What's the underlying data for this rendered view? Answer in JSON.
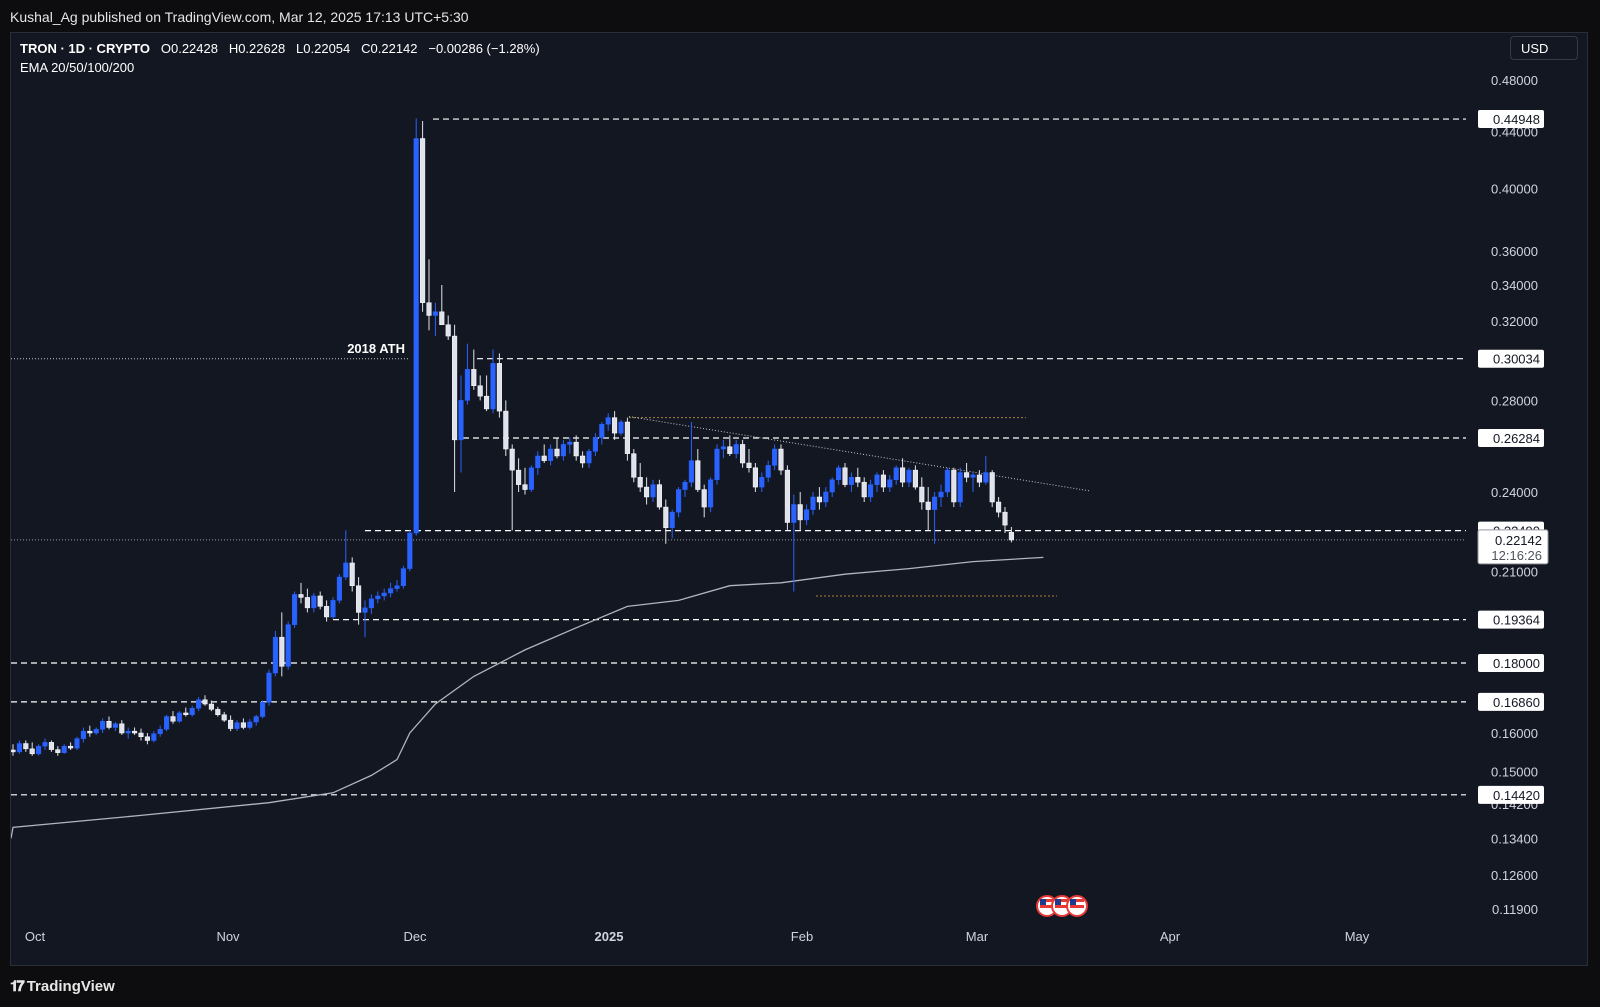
{
  "header": {
    "published_by": "Kushal_Ag published on TradingView.com, Mar 12, 2025 17:13 UTC+5:30"
  },
  "legend": {
    "symbol": "TRON · 1D · CRYPTO",
    "open": "O0.22428",
    "high": "H0.22628",
    "low": "L0.22054",
    "close": "C0.22142",
    "change": "−0.00286 (−1.28%)",
    "indicator": "EMA 20/50/100/200"
  },
  "currency_button": "USD",
  "brand": "TradingView",
  "colors": {
    "background": "#131722",
    "bull_candle": "#2962ff",
    "bear_candle": "#e0e3eb",
    "ema_line": "#b2b5be",
    "level_line": "#ffffff",
    "triangle_line": "#9598a1",
    "orange_line": "#a8823a",
    "label_bg": "#ffffff"
  },
  "chart_data": {
    "type": "candlestick",
    "symbol": "TRON",
    "interval": "1D",
    "y_scale": "log",
    "x_tick_labels": [
      "Oct",
      "Nov",
      "Dec",
      "2025",
      "Feb",
      "Mar",
      "Apr",
      "May"
    ],
    "y_tick_labels": [
      "0.48000",
      "0.44000",
      "0.40000",
      "0.36000",
      "0.34000",
      "0.32000",
      "0.28000",
      "0.24000",
      "0.21000",
      "0.16000",
      "0.15000",
      "0.14200",
      "0.13400",
      "0.12600",
      "0.11900"
    ],
    "horizontal_levels": [
      {
        "value": "0.44948",
        "style": "dashed"
      },
      {
        "value": "0.30034",
        "style": "dashed"
      },
      {
        "value": "0.26284",
        "style": "dashed"
      },
      {
        "value": "0.22490",
        "style": "dashed"
      },
      {
        "value": "0.19364",
        "style": "dashed"
      },
      {
        "value": "0.18000",
        "style": "dashed"
      },
      {
        "value": "0.16860",
        "style": "dashed"
      },
      {
        "value": "0.14420",
        "style": "dashed"
      }
    ],
    "annotations": [
      {
        "text": "2018 ATH",
        "value": 0.3003
      }
    ],
    "current_price": {
      "value": "0.22142",
      "countdown": "12:16:26"
    },
    "candles_ohlc_start_end": {
      "start_date": "Sep 27 2024",
      "end_date": "Mar 12 2025"
    },
    "candles": [
      [
        0.1555,
        0.157,
        0.154,
        0.155
      ],
      [
        0.155,
        0.158,
        0.1545,
        0.1572
      ],
      [
        0.1572,
        0.158,
        0.155,
        0.1558
      ],
      [
        0.1558,
        0.1575,
        0.154,
        0.1545
      ],
      [
        0.1545,
        0.157,
        0.154,
        0.1565
      ],
      [
        0.1565,
        0.1585,
        0.1555,
        0.1575
      ],
      [
        0.1575,
        0.158,
        0.155,
        0.1556
      ],
      [
        0.1556,
        0.1565,
        0.154,
        0.1548
      ],
      [
        0.1548,
        0.157,
        0.1545,
        0.1565
      ],
      [
        0.1565,
        0.1575,
        0.1555,
        0.156
      ],
      [
        0.156,
        0.159,
        0.1555,
        0.1585
      ],
      [
        0.1585,
        0.1615,
        0.1575,
        0.1605
      ],
      [
        0.1605,
        0.162,
        0.159,
        0.16
      ],
      [
        0.16,
        0.1615,
        0.1595,
        0.161
      ],
      [
        0.161,
        0.164,
        0.16,
        0.1632
      ],
      [
        0.1632,
        0.1645,
        0.161,
        0.1615
      ],
      [
        0.1615,
        0.163,
        0.1605,
        0.1625
      ],
      [
        0.1625,
        0.1635,
        0.1595,
        0.16
      ],
      [
        0.16,
        0.1615,
        0.1585,
        0.1605
      ],
      [
        0.1605,
        0.1615,
        0.1595,
        0.16
      ],
      [
        0.16,
        0.1612,
        0.158,
        0.159
      ],
      [
        0.159,
        0.16,
        0.157,
        0.158
      ],
      [
        0.158,
        0.1605,
        0.1575,
        0.1598
      ],
      [
        0.1598,
        0.162,
        0.159,
        0.161
      ],
      [
        0.161,
        0.165,
        0.1605,
        0.1645
      ],
      [
        0.1645,
        0.166,
        0.1625,
        0.1632
      ],
      [
        0.1632,
        0.166,
        0.1628,
        0.1655
      ],
      [
        0.1655,
        0.167,
        0.1645,
        0.165
      ],
      [
        0.165,
        0.1675,
        0.1645,
        0.1668
      ],
      [
        0.1668,
        0.17,
        0.166,
        0.1692
      ],
      [
        0.1692,
        0.1705,
        0.1675,
        0.168
      ],
      [
        0.168,
        0.169,
        0.166,
        0.1665
      ],
      [
        0.1665,
        0.1672,
        0.1645,
        0.165
      ],
      [
        0.165,
        0.1658,
        0.163,
        0.1635
      ],
      [
        0.1635,
        0.1648,
        0.1605,
        0.1612
      ],
      [
        0.1612,
        0.1635,
        0.1605,
        0.1628
      ],
      [
        0.1628,
        0.164,
        0.161,
        0.1615
      ],
      [
        0.1615,
        0.1638,
        0.161,
        0.163
      ],
      [
        0.163,
        0.165,
        0.162,
        0.1645
      ],
      [
        0.1645,
        0.169,
        0.164,
        0.1685
      ],
      [
        0.1685,
        0.178,
        0.1675,
        0.177
      ],
      [
        0.177,
        0.19,
        0.176,
        0.188
      ],
      [
        0.188,
        0.196,
        0.176,
        0.179
      ],
      [
        0.179,
        0.193,
        0.178,
        0.192
      ],
      [
        0.192,
        0.203,
        0.191,
        0.202
      ],
      [
        0.202,
        0.206,
        0.199,
        0.201
      ],
      [
        0.201,
        0.204,
        0.196,
        0.1975
      ],
      [
        0.1975,
        0.2025,
        0.196,
        0.2015
      ],
      [
        0.2015,
        0.203,
        0.197,
        0.198
      ],
      [
        0.198,
        0.2,
        0.193,
        0.1945
      ],
      [
        0.1945,
        0.201,
        0.194,
        0.2
      ],
      [
        0.2,
        0.209,
        0.199,
        0.208
      ],
      [
        0.208,
        0.225,
        0.207,
        0.213
      ],
      [
        0.213,
        0.215,
        0.203,
        0.205
      ],
      [
        0.205,
        0.208,
        0.192,
        0.196
      ],
      [
        0.196,
        0.2,
        0.188,
        0.1975
      ],
      [
        0.1975,
        0.202,
        0.1955,
        0.2005
      ],
      [
        0.2005,
        0.203,
        0.199,
        0.2015
      ],
      [
        0.2015,
        0.204,
        0.2,
        0.2025
      ],
      [
        0.2025,
        0.206,
        0.201,
        0.204
      ],
      [
        0.204,
        0.207,
        0.203,
        0.205
      ],
      [
        0.205,
        0.212,
        0.204,
        0.211
      ],
      [
        0.211,
        0.225,
        0.21,
        0.224
      ],
      [
        0.224,
        0.45,
        0.223,
        0.435
      ],
      [
        0.435,
        0.448,
        0.325,
        0.33
      ],
      [
        0.33,
        0.355,
        0.315,
        0.323
      ],
      [
        0.323,
        0.33,
        0.312,
        0.325
      ],
      [
        0.325,
        0.34,
        0.318,
        0.318
      ],
      [
        0.318,
        0.323,
        0.31,
        0.312
      ],
      [
        0.312,
        0.318,
        0.24,
        0.262
      ],
      [
        0.262,
        0.292,
        0.248,
        0.28
      ],
      [
        0.28,
        0.308,
        0.278,
        0.295
      ],
      [
        0.295,
        0.305,
        0.285,
        0.287
      ],
      [
        0.287,
        0.292,
        0.28,
        0.282
      ],
      [
        0.282,
        0.292,
        0.275,
        0.276
      ],
      [
        0.276,
        0.305,
        0.274,
        0.298
      ],
      [
        0.298,
        0.303,
        0.272,
        0.275
      ],
      [
        0.275,
        0.28,
        0.255,
        0.258
      ],
      [
        0.258,
        0.26,
        0.225,
        0.249
      ],
      [
        0.249,
        0.254,
        0.24,
        0.243
      ],
      [
        0.243,
        0.25,
        0.239,
        0.241
      ],
      [
        0.241,
        0.251,
        0.24,
        0.25
      ],
      [
        0.25,
        0.257,
        0.247,
        0.255
      ],
      [
        0.255,
        0.26,
        0.252,
        0.253
      ],
      [
        0.253,
        0.26,
        0.251,
        0.258
      ],
      [
        0.258,
        0.263,
        0.254,
        0.255
      ],
      [
        0.255,
        0.262,
        0.253,
        0.26
      ],
      [
        0.26,
        0.263,
        0.256,
        0.261
      ],
      [
        0.261,
        0.264,
        0.253,
        0.255
      ],
      [
        0.255,
        0.257,
        0.25,
        0.252
      ],
      [
        0.252,
        0.258,
        0.25,
        0.257
      ],
      [
        0.257,
        0.265,
        0.255,
        0.263
      ],
      [
        0.263,
        0.27,
        0.26,
        0.269
      ],
      [
        0.269,
        0.274,
        0.266,
        0.272
      ],
      [
        0.272,
        0.275,
        0.262,
        0.265
      ],
      [
        0.265,
        0.271,
        0.264,
        0.27
      ],
      [
        0.27,
        0.272,
        0.253,
        0.256
      ],
      [
        0.256,
        0.258,
        0.244,
        0.246
      ],
      [
        0.246,
        0.252,
        0.24,
        0.242
      ],
      [
        0.242,
        0.246,
        0.235,
        0.238
      ],
      [
        0.238,
        0.245,
        0.236,
        0.243
      ],
      [
        0.243,
        0.245,
        0.233,
        0.234
      ],
      [
        0.234,
        0.237,
        0.22,
        0.226
      ],
      [
        0.226,
        0.233,
        0.222,
        0.232
      ],
      [
        0.232,
        0.242,
        0.23,
        0.241
      ],
      [
        0.241,
        0.245,
        0.238,
        0.244
      ],
      [
        0.244,
        0.27,
        0.242,
        0.253
      ],
      [
        0.253,
        0.258,
        0.24,
        0.241
      ],
      [
        0.241,
        0.243,
        0.23,
        0.234
      ],
      [
        0.234,
        0.246,
        0.232,
        0.245
      ],
      [
        0.245,
        0.26,
        0.243,
        0.258
      ],
      [
        0.258,
        0.262,
        0.254,
        0.259
      ],
      [
        0.259,
        0.264,
        0.255,
        0.256
      ],
      [
        0.256,
        0.262,
        0.254,
        0.26
      ],
      [
        0.26,
        0.262,
        0.25,
        0.252
      ],
      [
        0.252,
        0.258,
        0.248,
        0.25
      ],
      [
        0.25,
        0.252,
        0.24,
        0.242
      ],
      [
        0.242,
        0.248,
        0.24,
        0.246
      ],
      [
        0.246,
        0.253,
        0.244,
        0.251
      ],
      [
        0.251,
        0.26,
        0.249,
        0.258
      ],
      [
        0.258,
        0.26,
        0.247,
        0.249
      ],
      [
        0.249,
        0.251,
        0.225,
        0.228
      ],
      [
        0.228,
        0.239,
        0.203,
        0.235
      ],
      [
        0.235,
        0.24,
        0.225,
        0.229
      ],
      [
        0.229,
        0.235,
        0.227,
        0.233
      ],
      [
        0.233,
        0.24,
        0.231,
        0.238
      ],
      [
        0.238,
        0.242,
        0.233,
        0.236
      ],
      [
        0.236,
        0.242,
        0.234,
        0.24
      ],
      [
        0.24,
        0.246,
        0.238,
        0.245
      ],
      [
        0.245,
        0.251,
        0.243,
        0.25
      ],
      [
        0.25,
        0.252,
        0.242,
        0.243
      ],
      [
        0.243,
        0.248,
        0.24,
        0.246
      ],
      [
        0.246,
        0.25,
        0.242,
        0.244
      ],
      [
        0.244,
        0.246,
        0.236,
        0.238
      ],
      [
        0.238,
        0.245,
        0.236,
        0.243
      ],
      [
        0.243,
        0.248,
        0.24,
        0.247
      ],
      [
        0.247,
        0.249,
        0.24,
        0.242
      ],
      [
        0.242,
        0.247,
        0.24,
        0.245
      ],
      [
        0.245,
        0.251,
        0.243,
        0.25
      ],
      [
        0.25,
        0.254,
        0.242,
        0.244
      ],
      [
        0.244,
        0.25,
        0.242,
        0.249
      ],
      [
        0.249,
        0.251,
        0.241,
        0.242
      ],
      [
        0.242,
        0.246,
        0.233,
        0.236
      ],
      [
        0.236,
        0.242,
        0.225,
        0.233
      ],
      [
        0.233,
        0.24,
        0.22,
        0.238
      ],
      [
        0.238,
        0.243,
        0.234,
        0.24
      ],
      [
        0.24,
        0.25,
        0.238,
        0.249
      ],
      [
        0.249,
        0.25,
        0.234,
        0.236
      ],
      [
        0.236,
        0.25,
        0.234,
        0.248
      ],
      [
        0.248,
        0.252,
        0.244,
        0.246
      ],
      [
        0.246,
        0.248,
        0.24,
        0.247
      ],
      [
        0.247,
        0.249,
        0.242,
        0.244
      ],
      [
        0.244,
        0.255,
        0.243,
        0.248
      ],
      [
        0.248,
        0.249,
        0.234,
        0.236
      ],
      [
        0.236,
        0.238,
        0.23,
        0.232
      ],
      [
        0.232,
        0.234,
        0.224,
        0.227
      ],
      [
        0.2243,
        0.2263,
        0.2205,
        0.2214
      ]
    ],
    "ema_200": [
      [
        0,
        0.1365
      ],
      [
        20,
        0.1393
      ],
      [
        40,
        0.1423
      ],
      [
        50,
        0.1447
      ],
      [
        56,
        0.149
      ],
      [
        60,
        0.153
      ],
      [
        62,
        0.16
      ],
      [
        66,
        0.168
      ],
      [
        72,
        0.176
      ],
      [
        80,
        0.184
      ],
      [
        88,
        0.191
      ],
      [
        96,
        0.198
      ],
      [
        104,
        0.2
      ],
      [
        112,
        0.205
      ],
      [
        120,
        0.206
      ],
      [
        130,
        0.209
      ],
      [
        140,
        0.211
      ],
      [
        150,
        0.2135
      ],
      [
        161,
        0.215
      ]
    ],
    "ema_200_x_units": "candle index from first candle"
  }
}
